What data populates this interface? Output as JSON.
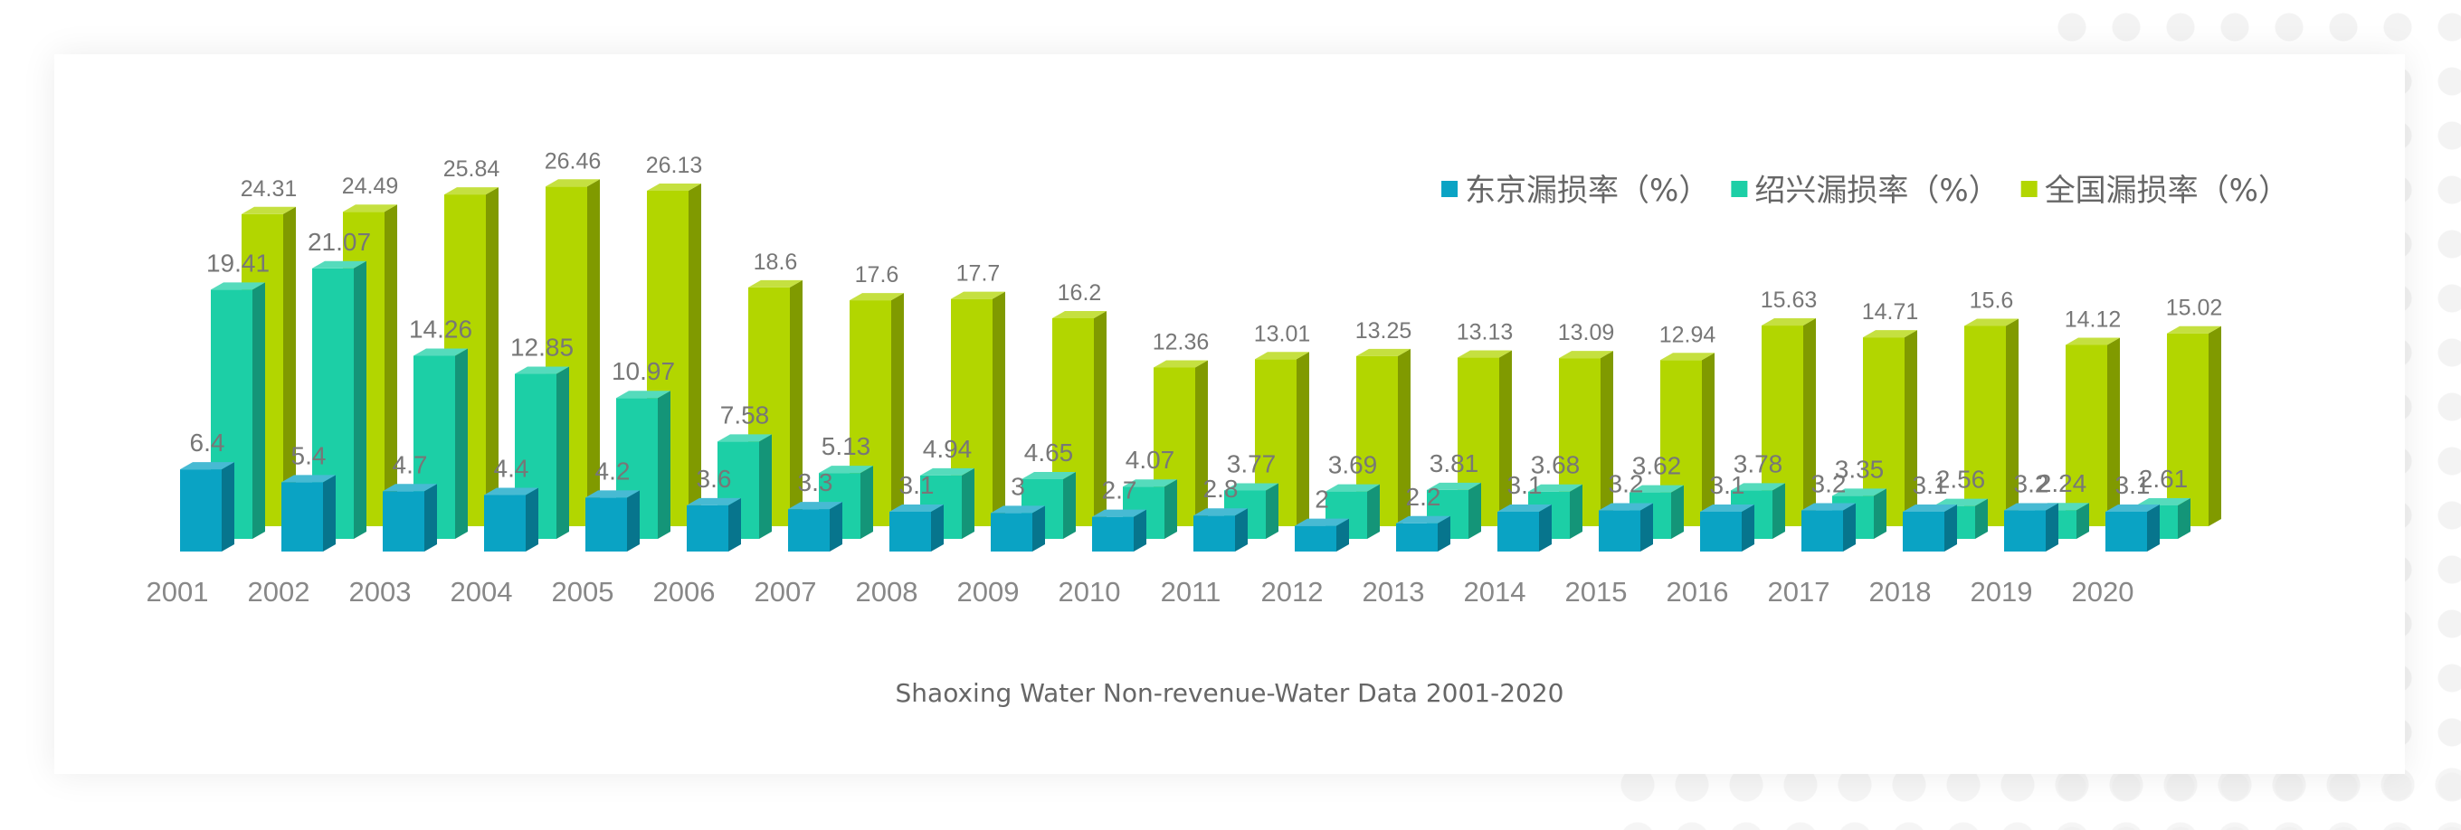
{
  "caption": "Shaoxing Water Non-revenue-Water Data 2001-2020",
  "chart_data": {
    "type": "bar",
    "title": "",
    "xlabel": "",
    "ylabel": "",
    "ylim": [
      0,
      30
    ],
    "grid": false,
    "legend_position": "top-right",
    "categories": [
      "2001",
      "2002",
      "2003",
      "2004",
      "2005",
      "2006",
      "2007",
      "2008",
      "2009",
      "2010",
      "2011",
      "2012",
      "2013",
      "2014",
      "2015",
      "2016",
      "2017",
      "2018",
      "2019",
      "2020"
    ],
    "series": [
      {
        "name": "东京漏损率（%）",
        "color": "#0aa3c4",
        "values": [
          6.4,
          5.4,
          4.7,
          4.4,
          4.2,
          3.6,
          3.3,
          3.1,
          3,
          2.7,
          2.8,
          2,
          2.2,
          3.1,
          3.2,
          3.1,
          3.2,
          3.1,
          3.2,
          3.1
        ]
      },
      {
        "name": "绍兴漏损率（%）",
        "color": "#1ccfa6",
        "values": [
          19.41,
          21.07,
          14.26,
          12.85,
          10.97,
          7.58,
          5.13,
          4.94,
          4.65,
          4.07,
          3.77,
          3.69,
          3.81,
          3.68,
          3.62,
          3.78,
          3.35,
          2.56,
          2.24,
          2.61
        ]
      },
      {
        "name": "全国漏损率（%）",
        "color": "#b2d600",
        "values": [
          24.31,
          24.49,
          25.84,
          26.46,
          26.13,
          18.6,
          17.6,
          17.7,
          16.2,
          12.36,
          13.01,
          13.25,
          13.13,
          13.09,
          12.94,
          15.63,
          14.71,
          15.6,
          14.12,
          15.02
        ]
      }
    ]
  }
}
